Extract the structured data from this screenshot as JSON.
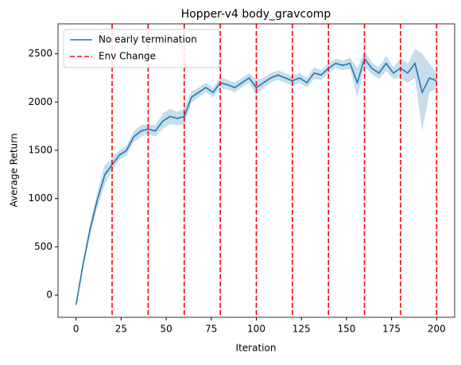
{
  "chart_data": {
    "type": "line",
    "title": "Hopper-v4 body_gravcomp",
    "xlabel": "Iteration",
    "ylabel": "Average Return",
    "x": [
      0,
      4,
      8,
      12,
      16,
      20,
      24,
      28,
      32,
      36,
      40,
      44,
      48,
      52,
      56,
      60,
      64,
      68,
      72,
      76,
      80,
      84,
      88,
      92,
      96,
      100,
      104,
      108,
      112,
      116,
      120,
      124,
      128,
      132,
      136,
      140,
      144,
      148,
      152,
      156,
      160,
      164,
      168,
      172,
      176,
      180,
      184,
      188,
      192,
      196,
      200
    ],
    "series": [
      {
        "name": "No early termination",
        "color": "#1f77b4",
        "values": [
          -100,
          330,
          700,
          1000,
          1250,
          1350,
          1450,
          1500,
          1640,
          1700,
          1720,
          1700,
          1800,
          1850,
          1830,
          1850,
          2050,
          2100,
          2150,
          2100,
          2200,
          2180,
          2150,
          2200,
          2250,
          2150,
          2200,
          2250,
          2280,
          2250,
          2220,
          2250,
          2200,
          2300,
          2280,
          2350,
          2400,
          2380,
          2400,
          2200,
          2450,
          2350,
          2300,
          2400,
          2300,
          2350,
          2300,
          2400,
          2100,
          2250,
          2220
        ],
        "errors": [
          20,
          40,
          60,
          80,
          100,
          60,
          50,
          50,
          60,
          60,
          50,
          60,
          80,
          80,
          70,
          80,
          60,
          50,
          50,
          50,
          60,
          50,
          50,
          50,
          50,
          80,
          50,
          50,
          50,
          50,
          50,
          50,
          50,
          60,
          50,
          50,
          50,
          50,
          60,
          150,
          80,
          60,
          60,
          80,
          60,
          100,
          100,
          150,
          400,
          150,
          80
        ]
      }
    ],
    "vlines": {
      "name": "Env Change",
      "color": "#ff0000",
      "x": [
        20,
        40,
        60,
        80,
        100,
        120,
        140,
        160,
        180,
        200
      ]
    },
    "xlim": [
      -10,
      210
    ],
    "xticks": [
      0,
      25,
      50,
      75,
      100,
      125,
      150,
      175,
      200
    ],
    "ylim": [
      -230,
      2810
    ],
    "yticks": [
      0,
      500,
      1000,
      1500,
      2000,
      2500
    ],
    "legend": "upper left"
  }
}
